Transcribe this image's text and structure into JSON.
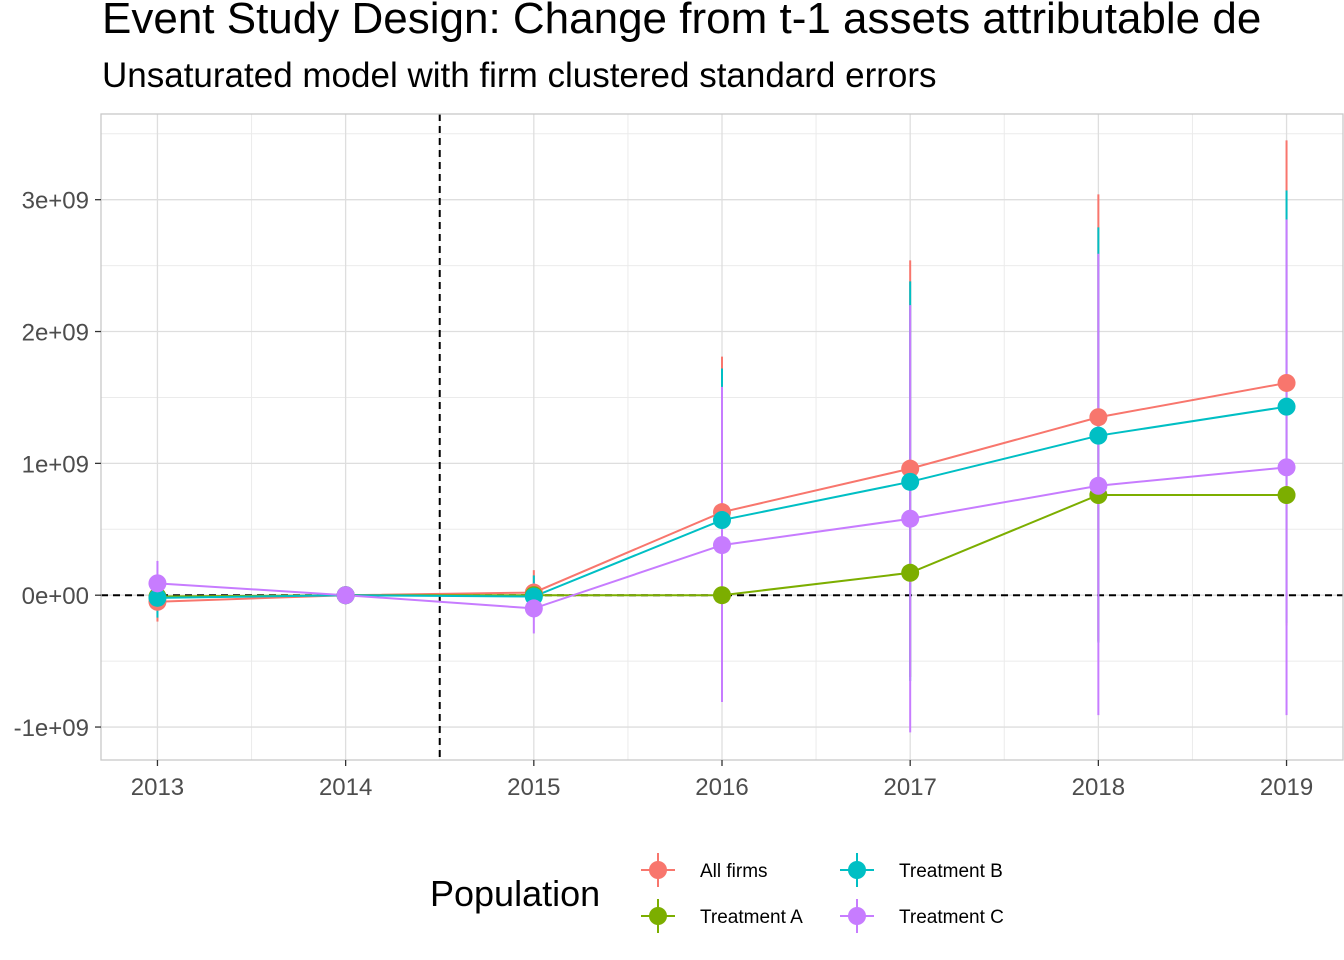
{
  "chart_data": {
    "type": "line",
    "title": "Event Study Design: Change from t-1 assets attributable de",
    "subtitle": "Unsaturated model with firm clustered standard errors",
    "x": [
      2013,
      2014,
      2015,
      2016,
      2017,
      2018,
      2019
    ],
    "x_ticks": [
      "2013",
      "2014",
      "2015",
      "2016",
      "2017",
      "2018",
      "2019"
    ],
    "y_ticks": [
      {
        "value": -1000000000,
        "label": "-1e+09"
      },
      {
        "value": 0,
        "label": "0e+00"
      },
      {
        "value": 1000000000,
        "label": "1e+09"
      },
      {
        "value": 2000000000,
        "label": "2e+09"
      },
      {
        "value": 3000000000,
        "label": "3e+09"
      }
    ],
    "xlim": [
      2012.7,
      2019.3
    ],
    "ylim": [
      -1250000000,
      3650000000
    ],
    "reference_lines": {
      "vertical_x": 2014.5,
      "horizontal_y": 0
    },
    "grid": true,
    "legend": {
      "title": "Population",
      "position": "bottom"
    },
    "series": [
      {
        "name": "All firms",
        "color": "#F8766D",
        "values": [
          -50000000,
          0,
          20000000,
          630000000,
          960000000,
          1350000000,
          1610000000
        ],
        "lower": [
          -200000000,
          0,
          -150000000,
          -550000000,
          -620000000,
          -350000000,
          -230000000
        ],
        "upper": [
          100000000,
          0,
          190000000,
          1810000000,
          2540000000,
          3040000000,
          3450000000
        ]
      },
      {
        "name": "Treatment A",
        "color": "#7CAE00",
        "values": [
          -10000000,
          0,
          0,
          0,
          170000000,
          760000000,
          760000000
        ],
        "lower": [
          -10000000,
          0,
          0,
          0,
          170000000,
          760000000,
          760000000
        ],
        "upper": [
          -10000000,
          0,
          0,
          0,
          170000000,
          760000000,
          760000000
        ]
      },
      {
        "name": "Treatment B",
        "color": "#00BFC4",
        "values": [
          -20000000,
          0,
          -10000000,
          570000000,
          860000000,
          1210000000,
          1430000000
        ],
        "lower": [
          -170000000,
          0,
          -170000000,
          -570000000,
          -650000000,
          -360000000,
          -210000000
        ],
        "upper": [
          130000000,
          0,
          150000000,
          1720000000,
          2380000000,
          2790000000,
          3070000000
        ]
      },
      {
        "name": "Treatment C",
        "color": "#C77CFF",
        "values": [
          90000000,
          0,
          -100000000,
          380000000,
          580000000,
          830000000,
          970000000
        ],
        "lower": [
          -80000000,
          0,
          -290000000,
          -810000000,
          -1040000000,
          -910000000,
          -910000000
        ],
        "upper": [
          260000000,
          0,
          90000000,
          1580000000,
          2200000000,
          2590000000,
          2850000000
        ]
      }
    ]
  }
}
